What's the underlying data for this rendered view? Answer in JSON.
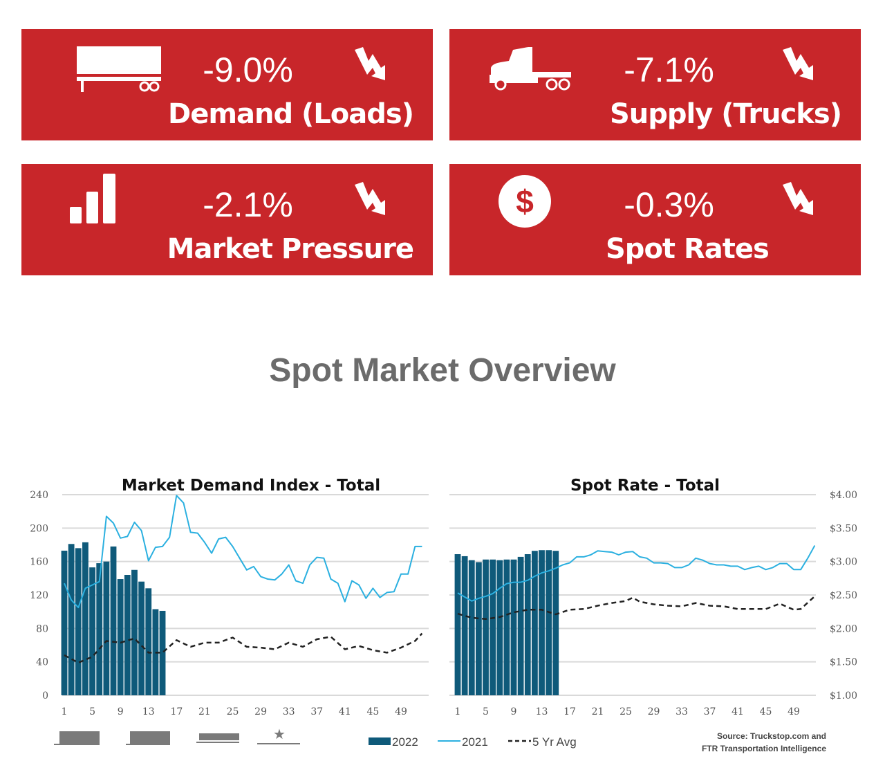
{
  "cards": [
    {
      "value": "-9.0%",
      "label": "Demand (Loads)",
      "icon": "trailer-icon",
      "trend": "down-arrow-icon"
    },
    {
      "value": "-7.1%",
      "label": "Supply (Trucks)",
      "icon": "truck-icon",
      "trend": "down-arrow-icon"
    },
    {
      "value": "-2.1%",
      "label": "Market Pressure",
      "icon": "bar-chart-icon",
      "trend": "down-arrow-icon"
    },
    {
      "value": "-0.3%",
      "label": "Spot Rates",
      "icon": "dollar-icon",
      "trend": "down-arrow-icon",
      "icon_text": "$"
    }
  ],
  "colors": {
    "card_red": "#c8262a",
    "bar_2022": "#0f5a7a",
    "line_2021": "#2bb0e0",
    "avg": "#222222",
    "title_gray": "#6b6b6b"
  },
  "page_title": "Spot Market Overview",
  "legend": {
    "s2022": "2022",
    "s2021": "2021",
    "avg": "5 Yr Avg"
  },
  "source": {
    "line1": "Source: Truckstop.com and",
    "line2": "FTR Transportation Intelligence"
  },
  "chart_data": [
    {
      "type": "bar+line",
      "title": "Market Demand Index - Total",
      "xlim": [
        1,
        52
      ],
      "xticks": [
        "1",
        "5",
        "9",
        "13",
        "17",
        "21",
        "25",
        "29",
        "33",
        "37",
        "41",
        "45",
        "49"
      ],
      "ylim": [
        0,
        240
      ],
      "yticks": [
        "0",
        "40",
        "80",
        "120",
        "160",
        "200",
        "240"
      ],
      "grid": true,
      "series": [
        {
          "name": "2022",
          "type": "bar",
          "x_start": 1,
          "values": [
            173,
            181,
            176,
            183,
            153,
            158,
            160,
            178,
            139,
            144,
            150,
            136,
            128,
            103,
            101
          ]
        },
        {
          "name": "2021",
          "type": "line",
          "x_start": 1,
          "values": [
            134,
            114,
            105,
            128,
            132,
            136,
            214,
            206,
            188,
            190,
            207,
            197,
            161,
            177,
            178,
            189,
            239,
            230,
            195,
            194,
            183,
            170,
            187,
            189,
            178,
            164,
            150,
            154,
            142,
            139,
            138,
            145,
            156,
            137,
            134,
            156,
            165,
            164,
            139,
            134,
            112,
            137,
            132,
            116,
            128,
            117,
            123,
            124,
            145,
            145,
            178,
            178
          ]
        },
        {
          "name": "5 Yr Avg",
          "type": "dashed-line",
          "x": [
            1,
            3,
            5,
            7,
            9,
            11,
            13,
            15,
            17,
            19,
            21,
            23,
            25,
            27,
            29,
            31,
            33,
            35,
            37,
            39,
            41,
            43,
            45,
            47,
            49,
            51,
            52
          ],
          "values": [
            48,
            39,
            46,
            65,
            63,
            68,
            51,
            51,
            66,
            58,
            63,
            63,
            69,
            58,
            57,
            55,
            63,
            58,
            67,
            70,
            55,
            59,
            54,
            51,
            57,
            65,
            74
          ]
        }
      ]
    },
    {
      "type": "bar+line",
      "title": "Spot Rate - Total",
      "xlim": [
        1,
        52
      ],
      "xticks": [
        "1",
        "5",
        "9",
        "13",
        "17",
        "21",
        "25",
        "29",
        "33",
        "37",
        "41",
        "45",
        "49"
      ],
      "ylim": [
        1.0,
        4.0
      ],
      "yticks": [
        "$1.00",
        "$1.50",
        "$2.00",
        "$2.50",
        "$3.00",
        "$3.50",
        "$4.00"
      ],
      "yaxis_side": "right",
      "grid": true,
      "series": [
        {
          "name": "2022",
          "type": "bar",
          "x_start": 1,
          "values": [
            3.11,
            3.08,
            3.02,
            2.99,
            3.03,
            3.03,
            3.02,
            3.03,
            3.03,
            3.07,
            3.11,
            3.16,
            3.17,
            3.17,
            3.16
          ]
        },
        {
          "name": "2021",
          "type": "line",
          "x_start": 1,
          "values": [
            2.53,
            2.47,
            2.41,
            2.45,
            2.48,
            2.52,
            2.6,
            2.67,
            2.69,
            2.69,
            2.72,
            2.78,
            2.83,
            2.86,
            2.9,
            2.95,
            2.98,
            3.07,
            3.07,
            3.1,
            3.16,
            3.15,
            3.14,
            3.1,
            3.14,
            3.15,
            3.07,
            3.05,
            2.98,
            2.98,
            2.97,
            2.91,
            2.91,
            2.95,
            3.05,
            3.02,
            2.97,
            2.95,
            2.95,
            2.93,
            2.93,
            2.88,
            2.91,
            2.93,
            2.88,
            2.91,
            2.97,
            2.97,
            2.88,
            2.88,
            3.05,
            3.24
          ]
        },
        {
          "name": "5 Yr Avg",
          "type": "dashed-line",
          "x": [
            1,
            3,
            5,
            7,
            9,
            11,
            13,
            15,
            17,
            19,
            21,
            23,
            25,
            26,
            27,
            29,
            31,
            33,
            35,
            37,
            39,
            41,
            43,
            45,
            47,
            49,
            50,
            52
          ],
          "values": [
            2.22,
            2.16,
            2.14,
            2.17,
            2.24,
            2.28,
            2.28,
            2.21,
            2.28,
            2.29,
            2.34,
            2.38,
            2.41,
            2.46,
            2.4,
            2.36,
            2.34,
            2.33,
            2.38,
            2.34,
            2.33,
            2.29,
            2.29,
            2.29,
            2.37,
            2.28,
            2.29,
            2.48
          ]
        }
      ]
    }
  ]
}
